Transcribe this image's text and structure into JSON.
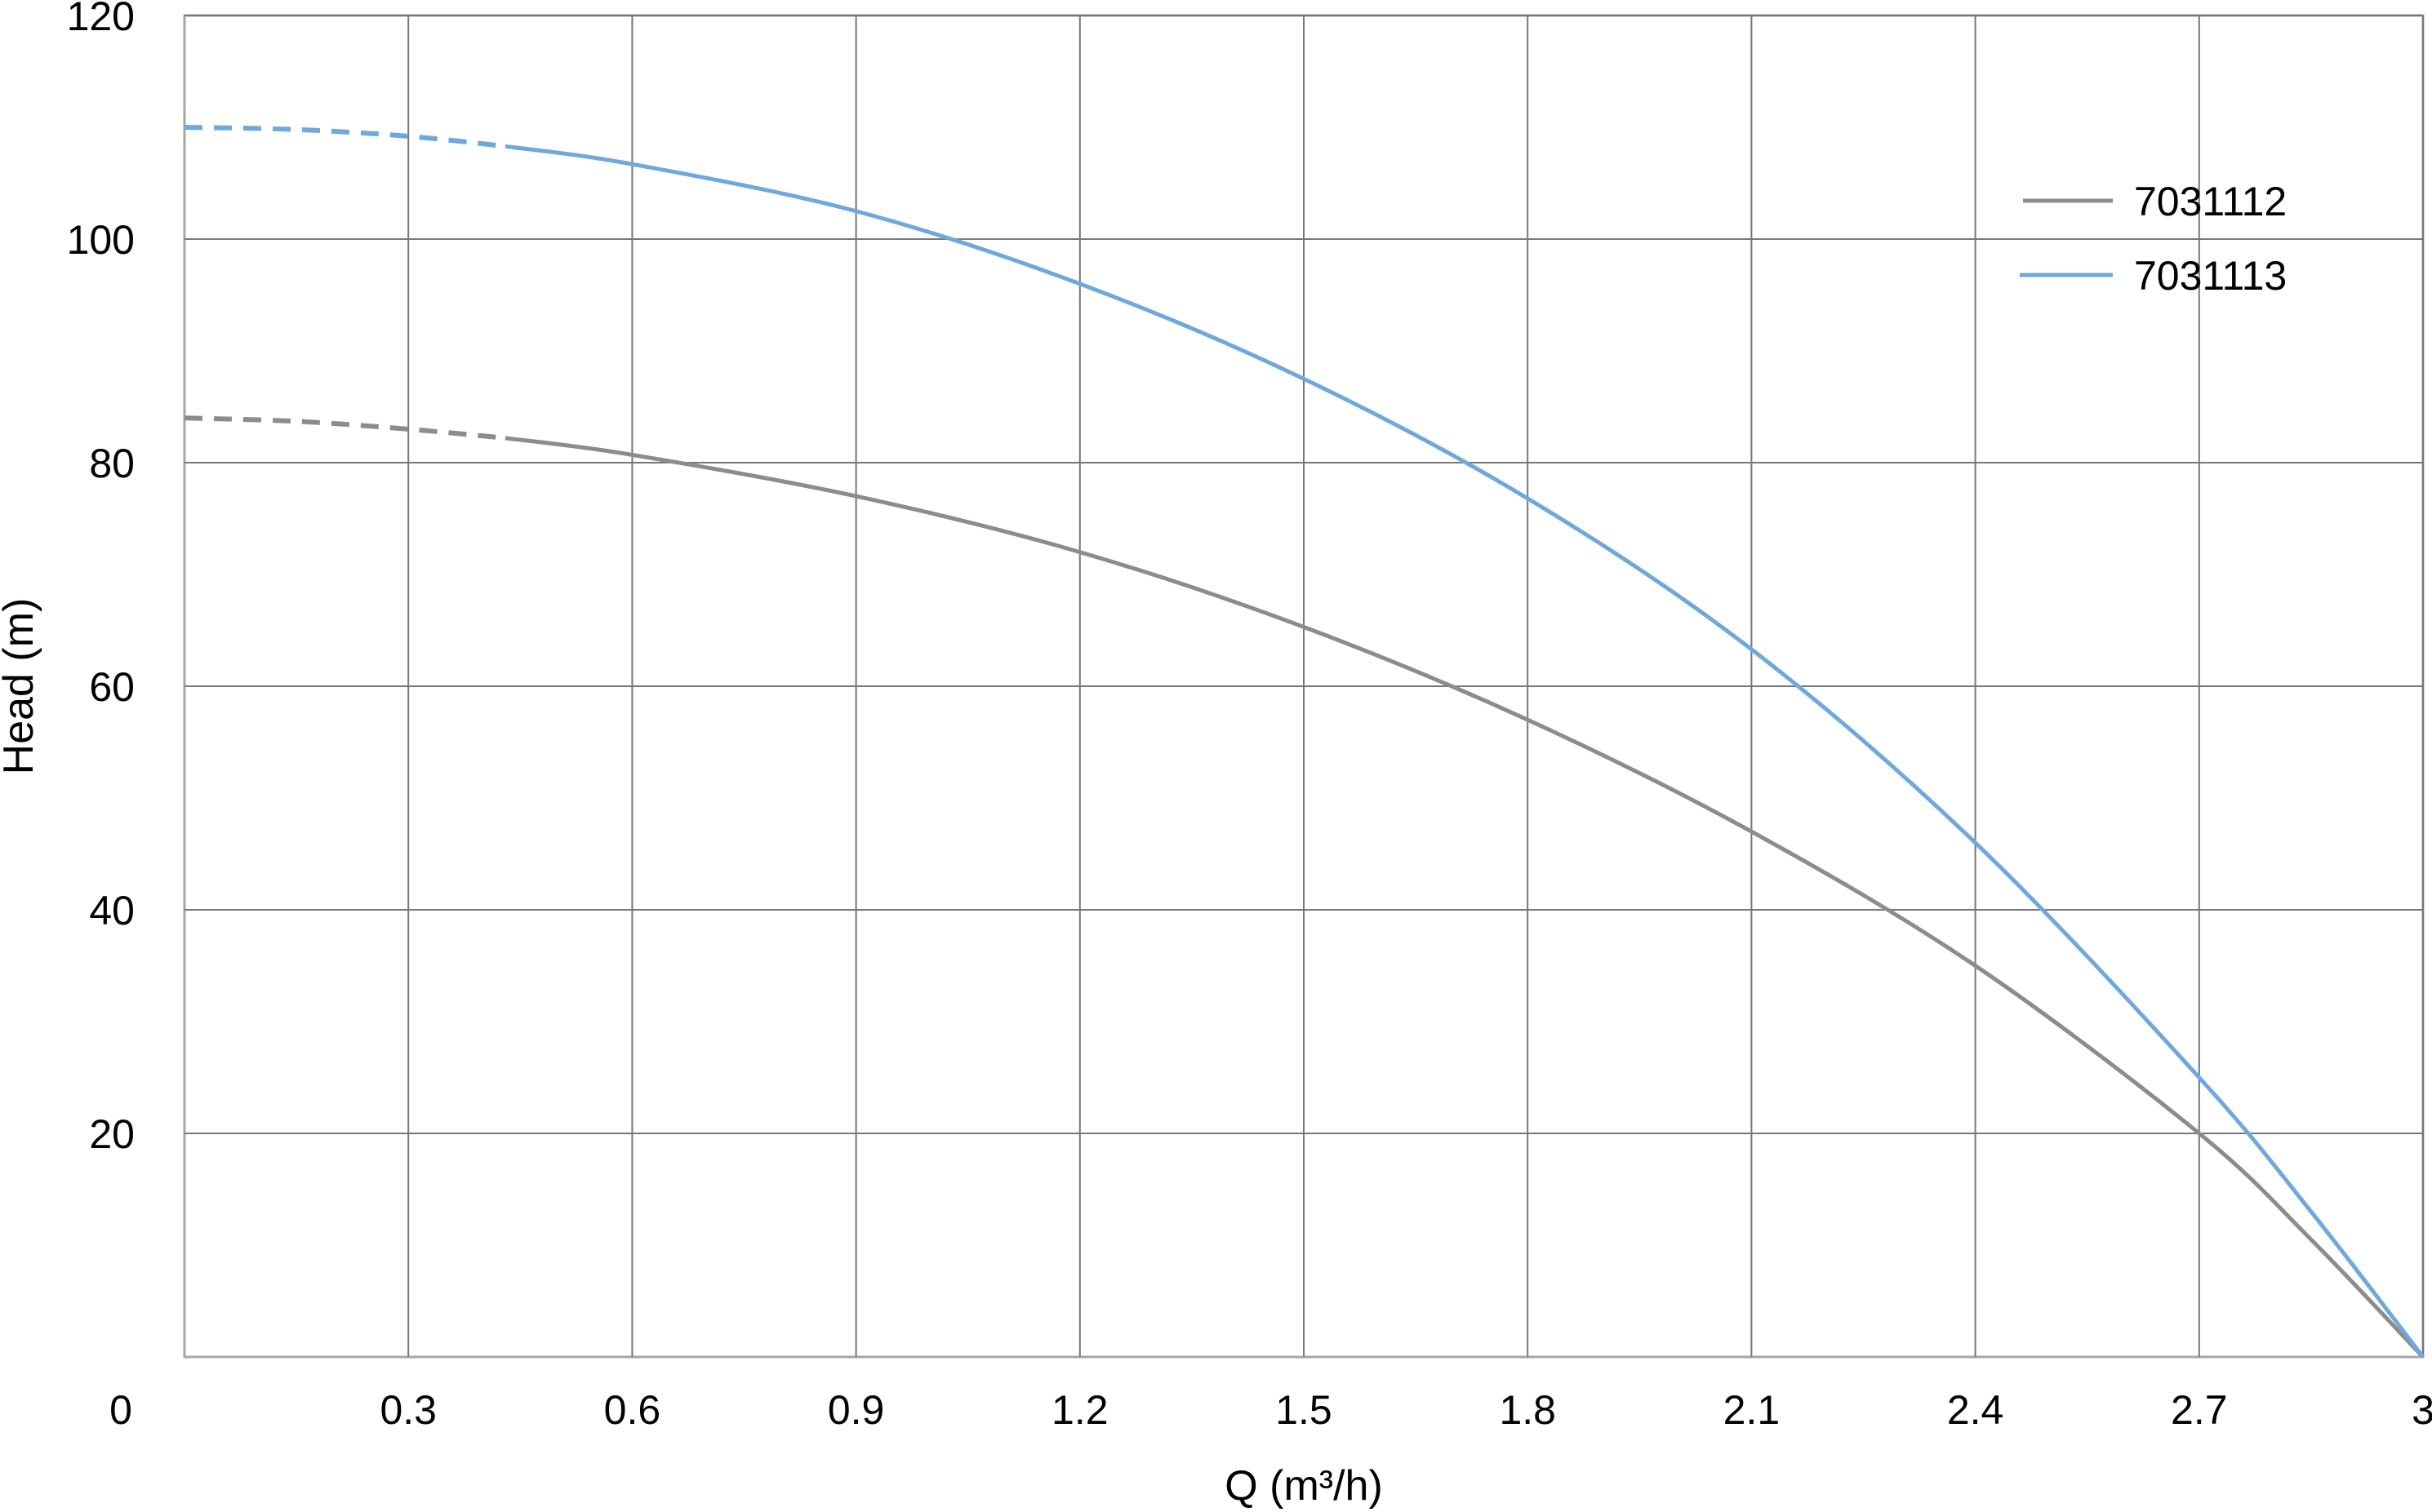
{
  "chart_data": {
    "type": "line",
    "title": "",
    "xlabel": "Q (m³/h)",
    "ylabel": "Head (m)",
    "xlim": [
      0,
      3
    ],
    "ylim": [
      0,
      120
    ],
    "x_ticks": [
      "0.3",
      "0.6",
      "0.9",
      "1.2",
      "1.5",
      "1.8",
      "2.1",
      "2.4",
      "2.7",
      "3"
    ],
    "x_tick_values": [
      0.3,
      0.6,
      0.9,
      1.2,
      1.5,
      1.8,
      2.1,
      2.4,
      2.7,
      3
    ],
    "y_ticks": [
      "20",
      "40",
      "60",
      "80",
      "100",
      "120"
    ],
    "y_tick_values": [
      20,
      40,
      60,
      80,
      100,
      120
    ],
    "origin_label": "0",
    "grid": true,
    "legend_position": "top-right",
    "dashed_until_x": 0.43,
    "series": [
      {
        "name": "7031112",
        "color": "#8c8c8c",
        "x": [
          0,
          0.15,
          0.3,
          0.43,
          0.6,
          0.9,
          1.2,
          1.5,
          1.8,
          2.1,
          2.4,
          2.7,
          2.85,
          3
        ],
        "y": [
          84,
          83.7,
          83,
          82.2,
          80.7,
          77,
          72,
          65.3,
          57,
          47,
          35,
          20,
          10.5,
          0
        ]
      },
      {
        "name": "7031113",
        "color": "#6fa8dc",
        "x": [
          0,
          0.15,
          0.3,
          0.43,
          0.6,
          0.9,
          1.2,
          1.5,
          1.8,
          2.1,
          2.4,
          2.7,
          2.85,
          3
        ],
        "y": [
          110,
          109.8,
          109.2,
          108.3,
          106.7,
          102.5,
          96,
          87.5,
          76.8,
          63.3,
          46,
          25,
          13,
          0
        ]
      }
    ]
  }
}
